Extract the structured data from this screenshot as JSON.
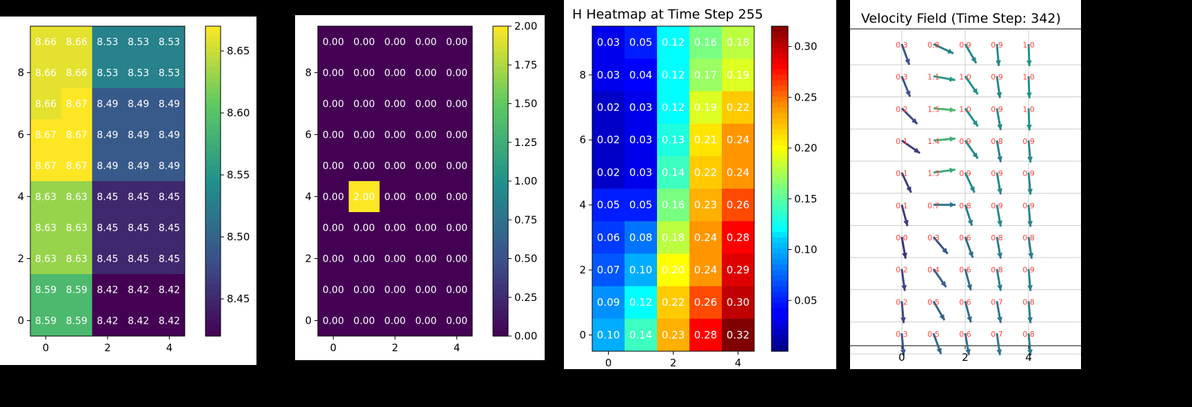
{
  "chart_data": [
    {
      "type": "heatmap",
      "title": "",
      "xlabel": "",
      "ylabel": "",
      "x_ticks": [
        "0",
        "2",
        "4"
      ],
      "y_ticks": [
        "0",
        "2",
        "4",
        "6",
        "8"
      ],
      "colormap": "viridis",
      "clim": [
        8.42,
        8.67
      ],
      "colorbar_ticks": [
        "8.45",
        "8.50",
        "8.55",
        "8.60",
        "8.65"
      ],
      "rows_top_to_bottom": [
        [
          8.66,
          8.66,
          8.53,
          8.53,
          8.53
        ],
        [
          8.66,
          8.66,
          8.53,
          8.53,
          8.53
        ],
        [
          8.66,
          8.67,
          8.49,
          8.49,
          8.49
        ],
        [
          8.67,
          8.67,
          8.49,
          8.49,
          8.49
        ],
        [
          8.67,
          8.67,
          8.49,
          8.49,
          8.49
        ],
        [
          8.63,
          8.63,
          8.45,
          8.45,
          8.45
        ],
        [
          8.63,
          8.63,
          8.45,
          8.45,
          8.45
        ],
        [
          8.63,
          8.63,
          8.45,
          8.45,
          8.45
        ],
        [
          8.59,
          8.59,
          8.42,
          8.42,
          8.42
        ],
        [
          8.59,
          8.59,
          8.42,
          8.42,
          8.42
        ]
      ]
    },
    {
      "type": "heatmap",
      "title": "",
      "xlabel": "",
      "ylabel": "",
      "x_ticks": [
        "0",
        "2",
        "4"
      ],
      "y_ticks": [
        "0",
        "2",
        "4",
        "6",
        "8"
      ],
      "colormap": "viridis",
      "clim": [
        0,
        2
      ],
      "colorbar_ticks": [
        "0.00",
        "0.25",
        "0.50",
        "0.75",
        "1.00",
        "1.25",
        "1.50",
        "1.75",
        "2.00"
      ],
      "rows_top_to_bottom": [
        [
          0,
          0,
          0,
          0,
          0
        ],
        [
          0,
          0,
          0,
          0,
          0
        ],
        [
          0,
          0,
          0,
          0,
          0
        ],
        [
          0,
          0,
          0,
          0,
          0
        ],
        [
          0,
          0,
          0,
          0,
          0
        ],
        [
          0,
          2,
          0,
          0,
          0
        ],
        [
          0,
          0,
          0,
          0,
          0
        ],
        [
          0,
          0,
          0,
          0,
          0
        ],
        [
          0,
          0,
          0,
          0,
          0
        ],
        [
          0,
          0,
          0,
          0,
          0
        ]
      ]
    },
    {
      "type": "heatmap",
      "title": "H Heatmap at Time Step 255",
      "xlabel": "",
      "ylabel": "",
      "x_ticks": [
        "0",
        "2",
        "4"
      ],
      "y_ticks": [
        "0",
        "2",
        "4",
        "6",
        "8"
      ],
      "colormap": "jet",
      "clim": [
        0,
        0.32
      ],
      "colorbar_ticks": [
        "0.05",
        "0.10",
        "0.15",
        "0.20",
        "0.25",
        "0.30"
      ],
      "rows_top_to_bottom": [
        [
          0.03,
          0.05,
          0.12,
          0.16,
          0.18
        ],
        [
          0.03,
          0.04,
          0.12,
          0.17,
          0.19
        ],
        [
          0.02,
          0.03,
          0.12,
          0.19,
          0.22
        ],
        [
          0.02,
          0.03,
          0.13,
          0.21,
          0.24
        ],
        [
          0.02,
          0.03,
          0.14,
          0.22,
          0.24
        ],
        [
          0.05,
          0.05,
          0.16,
          0.23,
          0.26
        ],
        [
          0.06,
          0.08,
          0.18,
          0.24,
          0.28
        ],
        [
          0.07,
          0.1,
          0.2,
          0.24,
          0.29
        ],
        [
          0.09,
          0.12,
          0.22,
          0.26,
          0.3
        ],
        [
          0.1,
          0.14,
          0.23,
          0.28,
          0.32
        ]
      ]
    },
    {
      "type": "quiver",
      "title": "Velocity Field (Time Step: 342)",
      "xlabel": "",
      "ylabel": "",
      "x_ticks": [
        "0",
        "2",
        "4"
      ],
      "grid": true,
      "colormap": "viridis",
      "rows_top_to_bottom": [
        {
          "labels": [
            "0.3",
            "0.8",
            "0.9",
            "0.9",
            "1.0"
          ],
          "angles_deg": [
            -70,
            -25,
            -60,
            -85,
            -88
          ]
        },
        {
          "labels": [
            "0.3",
            "1.1",
            "1.0",
            "0.9",
            "1.0"
          ],
          "angles_deg": [
            -68,
            -10,
            -55,
            -82,
            -88
          ]
        },
        {
          "labels": [
            "0.2",
            "1.5",
            "1.0",
            "0.9",
            "1.0"
          ],
          "angles_deg": [
            -45,
            -5,
            -55,
            -80,
            -88
          ]
        },
        {
          "labels": [
            "0.1",
            "1.4",
            "0.9",
            "0.8",
            "0.9"
          ],
          "angles_deg": [
            -35,
            5,
            -55,
            -80,
            -85
          ]
        },
        {
          "labels": [
            "0.1",
            "1.3",
            "0.9",
            "0.9",
            "0.9"
          ],
          "angles_deg": [
            -65,
            8,
            -65,
            -80,
            -85
          ]
        },
        {
          "labels": [
            "0.1",
            "0.7",
            "0.8",
            "0.9",
            "0.9"
          ],
          "angles_deg": [
            -75,
            0,
            -72,
            -80,
            -85
          ]
        },
        {
          "labels": [
            "0.0",
            "0.3",
            "0.6",
            "0.8",
            "0.8"
          ],
          "angles_deg": [
            -80,
            -50,
            -70,
            -80,
            -82
          ]
        },
        {
          "labels": [
            "0.2",
            "0.4",
            "0.6",
            "0.8",
            "0.9"
          ],
          "angles_deg": [
            -82,
            -55,
            -75,
            -80,
            -85
          ]
        },
        {
          "labels": [
            "0.2",
            "0.5",
            "0.6",
            "0.7",
            "0.8"
          ],
          "angles_deg": [
            -85,
            -60,
            -75,
            -80,
            -85
          ]
        },
        {
          "labels": [
            "0.3",
            "0.5",
            "0.6",
            "0.7",
            "0.8"
          ],
          "angles_deg": [
            -85,
            -70,
            -80,
            -82,
            -85
          ]
        }
      ]
    }
  ],
  "colors": {
    "label_text": "#ffffff",
    "quiver_label": "#ff4040",
    "axis": "#000000",
    "background": "#ffffff",
    "figure_bg": "#000000"
  }
}
